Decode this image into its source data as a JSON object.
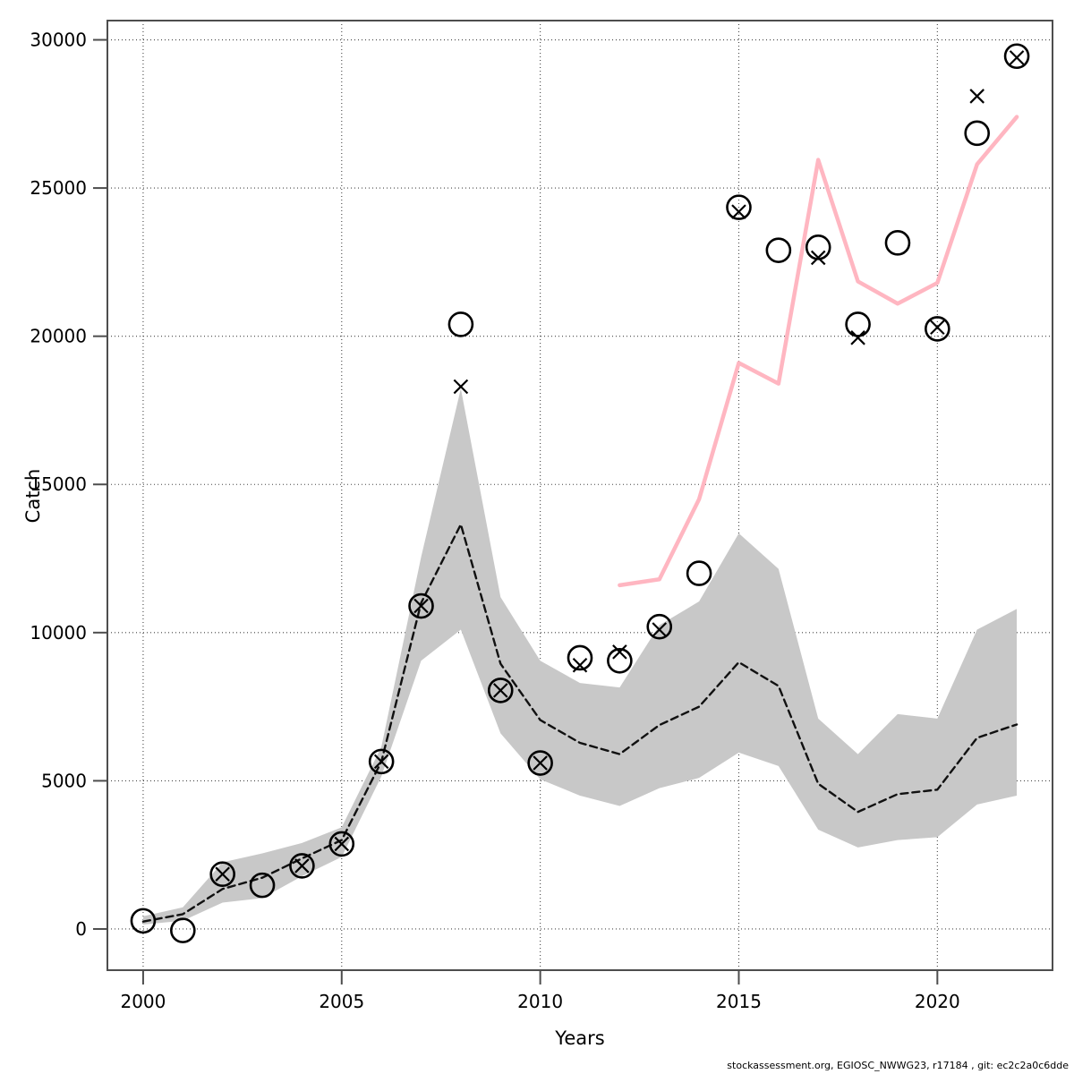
{
  "page": {
    "background": "#ffffff"
  },
  "axis": {
    "x_title": "Years",
    "y_title": "Catch"
  },
  "footer": {
    "text": "stockassessment.org, EGIOSC_NWWG23, r17184 , git: ec2c2a0c6dde"
  },
  "chart_data": {
    "type": "line",
    "title": "",
    "xlabel": "Years",
    "ylabel": "Catch",
    "grid": "dotted",
    "legend": "none",
    "xlim": [
      1999.1,
      2022.9
    ],
    "ylim": [
      -1390,
      30650
    ],
    "x_ticks": [
      2000,
      2005,
      2010,
      2015,
      2020
    ],
    "y_ticks": [
      0,
      5000,
      10000,
      15000,
      20000,
      25000,
      30000
    ],
    "colors": {
      "band": "#c8c8c8",
      "fit_line": "#111111",
      "forecast_line": "#ffb6c1",
      "markers": "#000000",
      "grid": "#444444",
      "frame": "#4d4d4d"
    },
    "series": [
      {
        "name": "confidence-band",
        "type": "band",
        "color": "#c8c8c8",
        "x": [
          2000,
          2001,
          2002,
          2003,
          2004,
          2005,
          2006,
          2007,
          2008,
          2009,
          2010,
          2011,
          2012,
          2013,
          2014,
          2015,
          2016,
          2017,
          2018,
          2019,
          2020,
          2021,
          2022
        ],
        "lo": [
          150,
          280,
          890,
          1040,
          1780,
          2430,
          5150,
          9050,
          10100,
          6600,
          5050,
          4500,
          4150,
          4750,
          5100,
          5950,
          5500,
          3350,
          2750,
          3000,
          3100,
          4200,
          4500
        ],
        "hi": [
          430,
          730,
          2250,
          2550,
          2900,
          3430,
          6150,
          12550,
          18230,
          11200,
          9050,
          8300,
          8150,
          10250,
          11050,
          13350,
          12150,
          7100,
          5900,
          7250,
          7100,
          10100,
          10800
        ]
      },
      {
        "name": "model-fit",
        "type": "line",
        "style": "dashed",
        "color": "#111111",
        "width": 2.4,
        "x": [
          2000,
          2001,
          2002,
          2003,
          2004,
          2005,
          2006,
          2007,
          2008,
          2009,
          2010,
          2011,
          2012,
          2013,
          2014,
          2015,
          2016,
          2017,
          2018,
          2019,
          2020,
          2021,
          2022
        ],
        "y": [
          250,
          500,
          1350,
          1730,
          2380,
          3000,
          5650,
          11000,
          13650,
          8950,
          7050,
          6280,
          5900,
          6880,
          7500,
          9000,
          8200,
          4900,
          3950,
          4550,
          4700,
          6450,
          6900
        ]
      },
      {
        "name": "forecast-line",
        "type": "line",
        "style": "solid",
        "color": "#ffb6c1",
        "width": 4.5,
        "x": [
          2012,
          2013,
          2014,
          2015,
          2016,
          2017,
          2018,
          2019,
          2020,
          2021,
          2022
        ],
        "y": [
          11600,
          11800,
          14500,
          19100,
          18400,
          25950,
          21850,
          21100,
          21800,
          25800,
          27400
        ]
      },
      {
        "name": "observed-catch",
        "type": "scatter",
        "marker": "circle",
        "color": "#000000",
        "x": [
          2000,
          2001,
          2002,
          2003,
          2004,
          2005,
          2006,
          2007,
          2008,
          2009,
          2010,
          2011,
          2012,
          2013,
          2014,
          2015,
          2016,
          2017,
          2018,
          2019,
          2020,
          2021,
          2022
        ],
        "y": [
          275,
          -50,
          1850,
          1475,
          2130,
          2870,
          5650,
          10900,
          20400,
          8050,
          5600,
          9150,
          9050,
          10200,
          12000,
          24350,
          22900,
          23000,
          20400,
          23150,
          20250,
          26850,
          29450
        ]
      },
      {
        "name": "predicted-catch",
        "type": "scatter",
        "marker": "x",
        "color": "#000000",
        "x": [
          2002,
          2004,
          2005,
          2006,
          2007,
          2008,
          2009,
          2010,
          2011,
          2012,
          2013,
          2015,
          2017,
          2018,
          2020,
          2021,
          2022
        ],
        "y": [
          1850,
          2130,
          2870,
          5650,
          10900,
          18300,
          8050,
          5600,
          8900,
          9350,
          10100,
          24200,
          22650,
          19950,
          20300,
          28100,
          29400
        ]
      }
    ]
  }
}
